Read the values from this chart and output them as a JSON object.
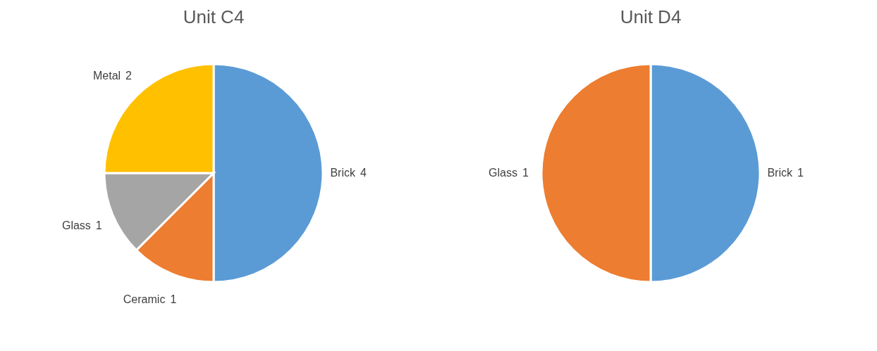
{
  "chart_data": [
    {
      "type": "pie",
      "title": "Unit C4",
      "categories": [
        "Brick",
        "Ceramic",
        "Glass",
        "Metal"
      ],
      "values": [
        4,
        1,
        1,
        2
      ],
      "data_labels": true,
      "colors": [
        "#5b9bd5",
        "#ed7d31",
        "#a5a5a5",
        "#ffc000"
      ],
      "legend": false
    },
    {
      "type": "pie",
      "title": "Unit D4",
      "categories": [
        "Brick",
        "Glass"
      ],
      "values": [
        1,
        1
      ],
      "data_labels": true,
      "colors": [
        "#5b9bd5",
        "#ed7d31"
      ],
      "legend": false
    }
  ]
}
